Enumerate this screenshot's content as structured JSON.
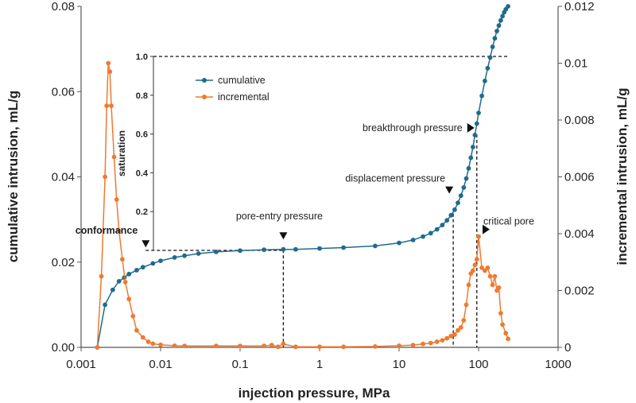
{
  "chart_data": {
    "type": "line",
    "title": "",
    "xlabel": "injection pressure, MPa",
    "ylabel_left": "cumulative intrusion, mL/g",
    "ylabel_right": "incremental intrusion, mL/g",
    "ylabel_inset": "saturation",
    "x_scale": "log",
    "xlim": [
      0.001,
      1000
    ],
    "ylim_left": [
      0,
      0.08
    ],
    "ylim_right": [
      0,
      0.012
    ],
    "ylim_inset": [
      0,
      1.0
    ],
    "x_ticks": [
      "0.001",
      "0.01",
      "0.1",
      "1",
      "10",
      "100",
      "1000"
    ],
    "y_left_ticks": [
      "0.00",
      "0.02",
      "0.04",
      "0.06",
      "0.08"
    ],
    "y_right_ticks": [
      "0",
      "0.002",
      "0.004",
      "0.006",
      "0.008",
      "0.01",
      "0.012"
    ],
    "y_inset_ticks": [
      "0.2",
      "0.4",
      "0.6",
      "0.8",
      "1.0"
    ],
    "legend": {
      "placement": "top-left (inset)",
      "entries": [
        "cumulative",
        "incremental"
      ]
    },
    "colors": {
      "cumulative": "#1f6b8c",
      "incremental": "#ee7a30"
    },
    "series": [
      {
        "name": "cumulative",
        "axis": "left",
        "x": [
          0.0016,
          0.002,
          0.0025,
          0.003,
          0.0035,
          0.004,
          0.005,
          0.006,
          0.008,
          0.01,
          0.015,
          0.02,
          0.03,
          0.05,
          0.1,
          0.2,
          0.35,
          0.5,
          1,
          2,
          5,
          10,
          15,
          20,
          25,
          30,
          35,
          40,
          45,
          50,
          55,
          60,
          65,
          70,
          75,
          80,
          85,
          90,
          95,
          100,
          110,
          120,
          130,
          140,
          150,
          160,
          170,
          180,
          190,
          200,
          210,
          220,
          235
        ],
        "y": [
          0.0,
          0.01,
          0.0135,
          0.0155,
          0.0164,
          0.0172,
          0.0181,
          0.0188,
          0.0197,
          0.0203,
          0.0211,
          0.0215,
          0.022,
          0.0224,
          0.0227,
          0.0229,
          0.023,
          0.023,
          0.0232,
          0.0234,
          0.0238,
          0.0245,
          0.0252,
          0.026,
          0.0268,
          0.0277,
          0.0287,
          0.0298,
          0.031,
          0.0323,
          0.0339,
          0.0356,
          0.0375,
          0.0396,
          0.042,
          0.0445,
          0.047,
          0.0498,
          0.0525,
          0.055,
          0.059,
          0.0625,
          0.0655,
          0.068,
          0.0705,
          0.0725,
          0.0742,
          0.0755,
          0.0767,
          0.0777,
          0.0786,
          0.0793,
          0.08
        ]
      },
      {
        "name": "incremental",
        "axis": "right",
        "x": [
          0.0016,
          0.0018,
          0.002,
          0.0021,
          0.0022,
          0.0023,
          0.0024,
          0.0026,
          0.0028,
          0.003,
          0.0033,
          0.0036,
          0.004,
          0.0045,
          0.005,
          0.006,
          0.007,
          0.008,
          0.01,
          0.015,
          0.02,
          0.05,
          0.1,
          0.2,
          0.25,
          0.3,
          0.35,
          0.5,
          1,
          2,
          5,
          10,
          15,
          20,
          25,
          30,
          35,
          40,
          45,
          50,
          55,
          60,
          65,
          70,
          75,
          80,
          85,
          90,
          95,
          100,
          110,
          120,
          130,
          140,
          150,
          160,
          170,
          180,
          190,
          200,
          220,
          235
        ],
        "y": [
          0.0,
          0.0025,
          0.006,
          0.0085,
          0.01,
          0.0097,
          0.0085,
          0.0067,
          0.0052,
          0.0041,
          0.0031,
          0.0023,
          0.0017,
          0.0011,
          0.0006,
          0.00035,
          0.0002,
          0.00013,
          9e-05,
          6e-05,
          5e-05,
          5e-05,
          5e-05,
          5e-05,
          8e-05,
          2e-05,
          0.00012,
          2e-05,
          2e-05,
          2e-05,
          3e-05,
          6e-05,
          8e-05,
          0.00012,
          0.00015,
          0.0002,
          0.00025,
          0.00032,
          0.0004,
          0.00045,
          0.0006,
          0.0007,
          0.00095,
          0.0015,
          0.0022,
          0.0026,
          0.0027,
          0.0029,
          0.0031,
          0.0039,
          0.0028,
          0.0027,
          0.0028,
          0.0025,
          0.0022,
          0.0025,
          0.002,
          0.0021,
          0.0012,
          0.0008,
          0.0005,
          0.0003
        ]
      }
    ],
    "annotations": [
      {
        "label": "conformance",
        "bold": true,
        "x": 0.0065,
        "y_left": 0.0229
      },
      {
        "label": "pore-entry pressure",
        "bold": false,
        "x": 0.35,
        "y_left": 0.0229
      },
      {
        "label": "displacement pressure",
        "bold": false,
        "x": 48,
        "y_left": 0.0314
      },
      {
        "label": "breakthrough pressure",
        "bold": false,
        "x": 95,
        "y_left": 0.05
      },
      {
        "label": "critical pore",
        "bold": false,
        "x": 100,
        "y_right": 0.0039
      }
    ]
  }
}
